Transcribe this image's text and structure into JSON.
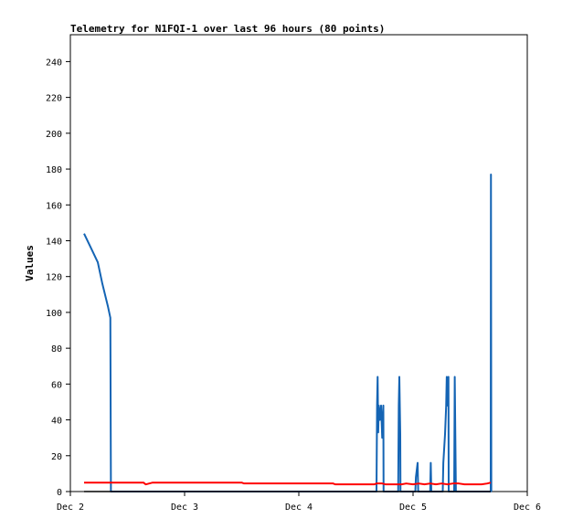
{
  "chart_data": {
    "type": "line",
    "title": "Telemetry for N1FQI-1 over last 96 hours (80 points)",
    "xlabel": "",
    "ylabel": "Values",
    "x_tick_labels": [
      "Dec 2",
      "Dec 3",
      "Dec 4",
      "Dec 5",
      "Dec 6"
    ],
    "xlim": [
      0,
      4
    ],
    "ylim": [
      0,
      255
    ],
    "y_ticks": [
      0,
      20,
      40,
      60,
      80,
      100,
      120,
      140,
      160,
      180,
      200,
      220,
      240
    ],
    "grid": false,
    "legend": "none",
    "series": [
      {
        "color": "#1464b4",
        "points": [
          [
            0.12,
            144
          ],
          [
            0.18,
            136
          ],
          [
            0.24,
            128
          ],
          [
            0.28,
            116
          ],
          [
            0.33,
            103
          ],
          [
            0.35,
            97
          ],
          [
            0.355,
            0
          ],
          [
            2.68,
            0
          ],
          [
            2.685,
            48
          ],
          [
            2.69,
            64
          ],
          [
            2.695,
            33
          ],
          [
            2.7,
            48
          ],
          [
            2.71,
            40
          ],
          [
            2.72,
            48
          ],
          [
            2.73,
            30
          ],
          [
            2.74,
            48
          ],
          [
            2.742,
            0
          ],
          [
            2.87,
            0
          ],
          [
            2.875,
            48
          ],
          [
            2.88,
            64
          ],
          [
            2.888,
            32
          ],
          [
            2.89,
            0
          ],
          [
            3.02,
            0
          ],
          [
            3.025,
            8
          ],
          [
            3.04,
            16
          ],
          [
            3.045,
            0
          ],
          [
            3.15,
            0
          ],
          [
            3.155,
            16
          ],
          [
            3.16,
            0
          ],
          [
            3.26,
            0
          ],
          [
            3.265,
            16
          ],
          [
            3.28,
            32
          ],
          [
            3.29,
            48
          ],
          [
            3.295,
            64
          ],
          [
            3.3,
            48
          ],
          [
            3.31,
            64
          ],
          [
            3.312,
            0
          ],
          [
            3.36,
            0
          ],
          [
            3.365,
            64
          ],
          [
            3.37,
            32
          ],
          [
            3.375,
            0
          ],
          [
            3.68,
            0
          ],
          [
            3.682,
            177
          ],
          [
            3.685,
            0
          ]
        ]
      },
      {
        "color": "#ff0000",
        "points": [
          [
            0.12,
            5
          ],
          [
            0.4,
            5
          ],
          [
            0.64,
            5
          ],
          [
            0.66,
            4
          ],
          [
            0.72,
            5
          ],
          [
            1.0,
            5
          ],
          [
            1.5,
            5
          ],
          [
            1.52,
            4.5
          ],
          [
            2.0,
            4.5
          ],
          [
            2.3,
            4.5
          ],
          [
            2.32,
            4
          ],
          [
            2.5,
            4
          ],
          [
            2.66,
            4
          ],
          [
            2.68,
            4.5
          ],
          [
            2.73,
            4.5
          ],
          [
            2.76,
            4
          ],
          [
            2.9,
            4
          ],
          [
            2.94,
            4.5
          ],
          [
            3.0,
            4
          ],
          [
            3.05,
            4.5
          ],
          [
            3.1,
            4
          ],
          [
            3.15,
            4.5
          ],
          [
            3.2,
            4
          ],
          [
            3.25,
            4.5
          ],
          [
            3.3,
            4
          ],
          [
            3.35,
            4.5
          ],
          [
            3.4,
            4.5
          ],
          [
            3.45,
            4
          ],
          [
            3.6,
            4
          ],
          [
            3.65,
            4.5
          ],
          [
            3.68,
            5
          ]
        ]
      },
      {
        "color": "#000000",
        "points": [
          [
            0.12,
            0
          ],
          [
            3.68,
            0
          ]
        ]
      }
    ]
  }
}
